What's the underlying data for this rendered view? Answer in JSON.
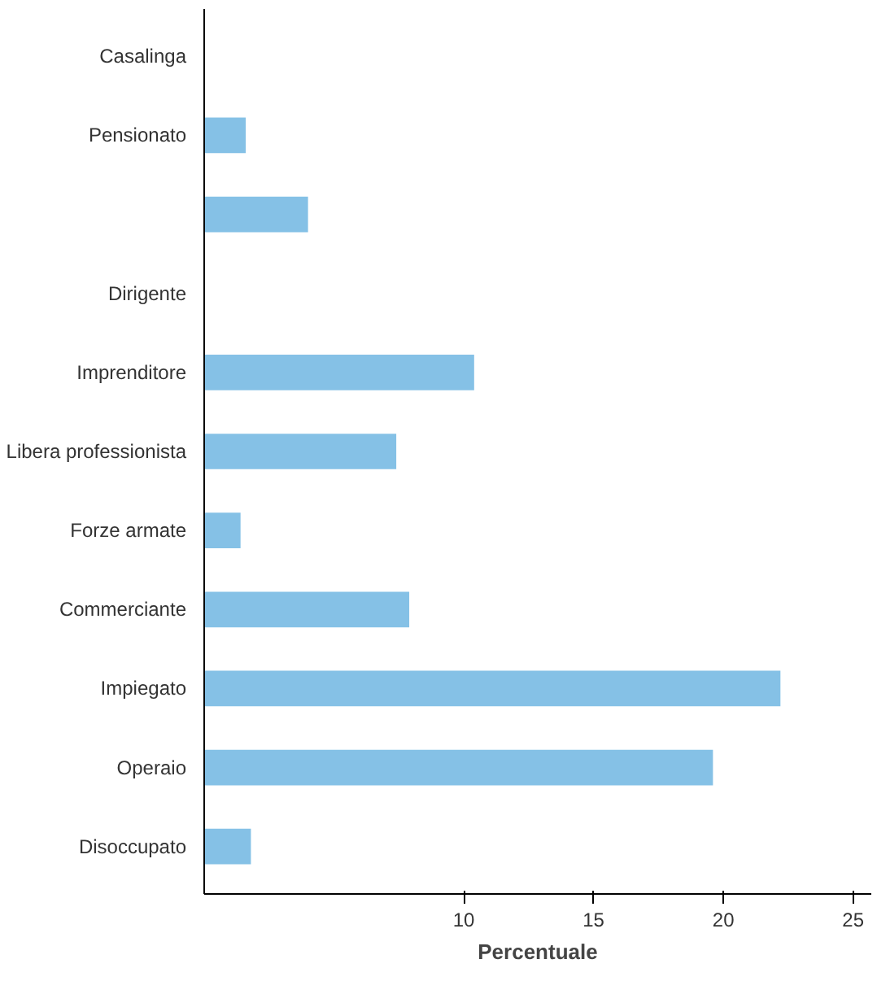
{
  "chart_data": {
    "type": "bar",
    "orientation": "horizontal",
    "xlabel": "Percentuale",
    "categories": [
      "Casalinga",
      "Pensionato",
      null,
      "Dirigente",
      "Imprenditore",
      "Libera professionista",
      "Forze armate",
      "Commerciante",
      "Impiegato",
      "Operaio",
      "Disoccupato"
    ],
    "values": [
      null,
      1.6,
      4.0,
      null,
      10.4,
      7.4,
      1.4,
      7.9,
      22.2,
      19.6,
      1.8
    ],
    "color": "#85c1e6",
    "xlim": [
      0,
      25.7
    ],
    "xticks": [
      10,
      15,
      20,
      25
    ],
    "grid": false
  }
}
